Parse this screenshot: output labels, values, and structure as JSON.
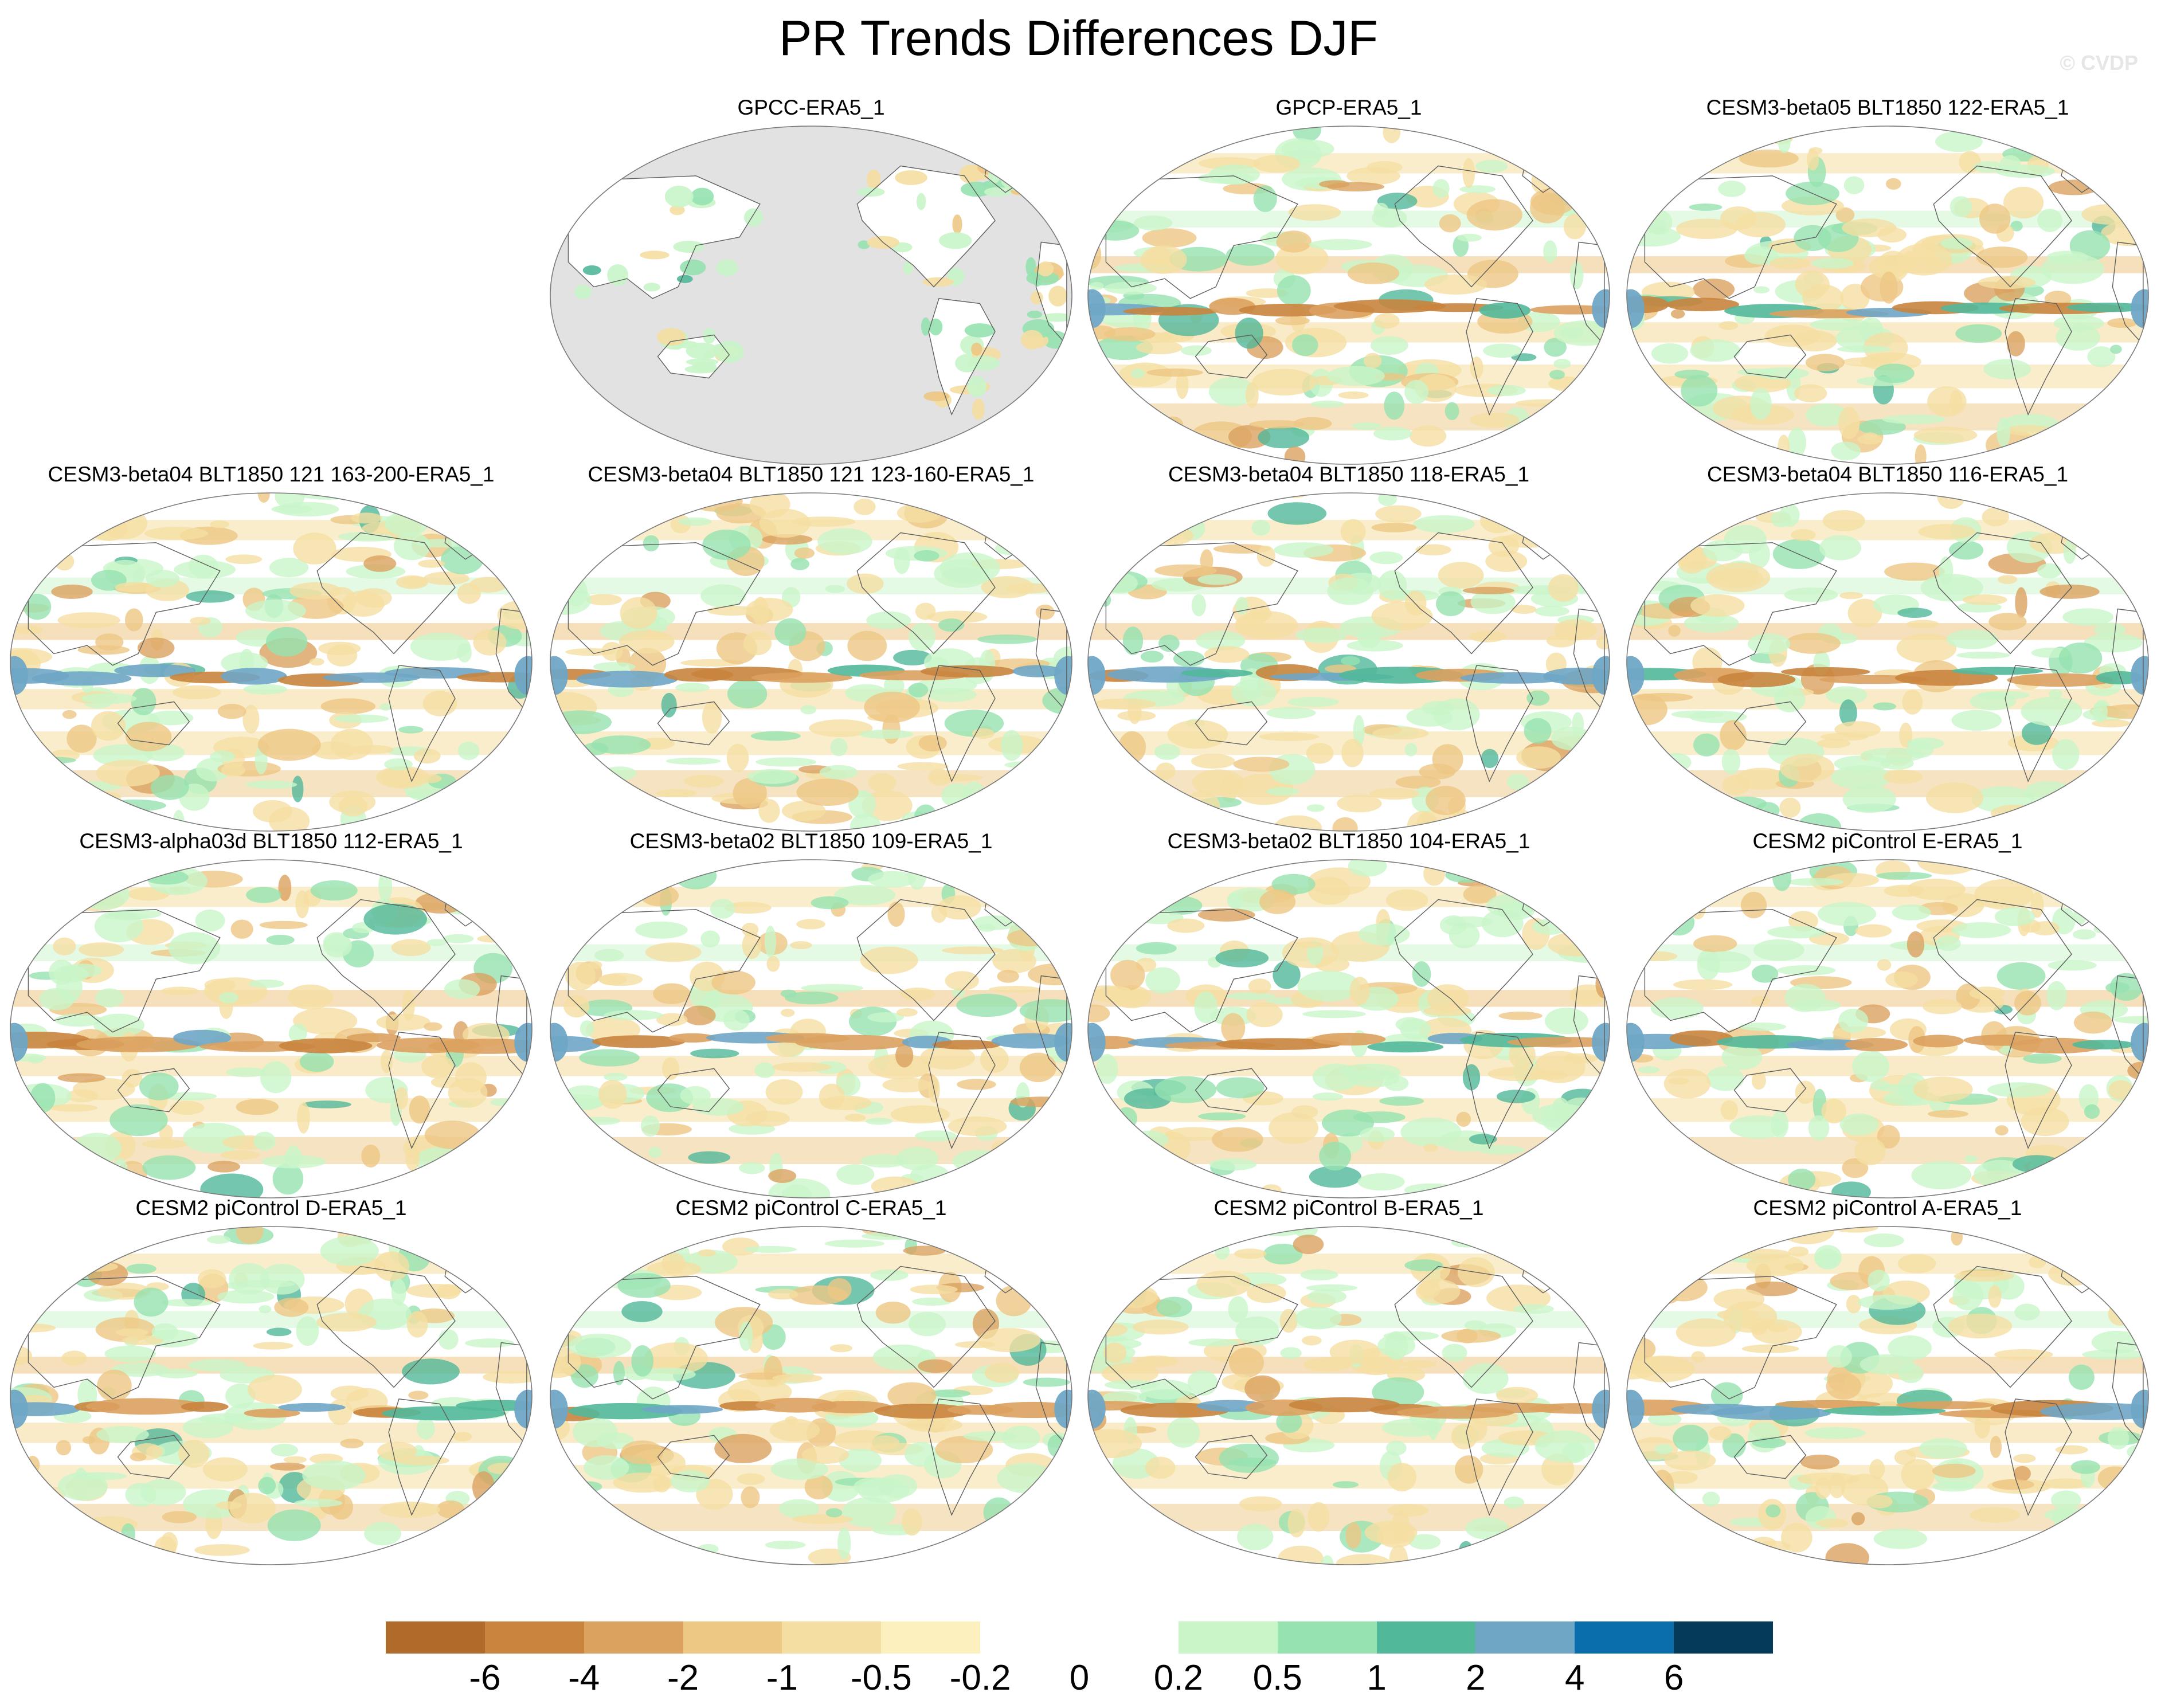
{
  "title": "PR Trends Differences DJF",
  "watermark": "© CVDP",
  "panels": [
    {
      "title": "GPCC-ERA5_1",
      "land_only": true
    },
    {
      "title": "GPCP-ERA5_1"
    },
    {
      "title": "CESM3-beta05 BLT1850 122-ERA5_1"
    },
    {
      "title": "CESM3-beta04 BLT1850 121 163-200-ERA5_1"
    },
    {
      "title": "CESM3-beta04 BLT1850 121 123-160-ERA5_1"
    },
    {
      "title": "CESM3-beta04 BLT1850 118-ERA5_1"
    },
    {
      "title": "CESM3-beta04 BLT1850 116-ERA5_1"
    },
    {
      "title": "CESM3-alpha03d BLT1850 112-ERA5_1"
    },
    {
      "title": "CESM3-beta02 BLT1850 109-ERA5_1"
    },
    {
      "title": "CESM3-beta02 BLT1850 104-ERA5_1"
    },
    {
      "title": "CESM2 piControl E-ERA5_1"
    },
    {
      "title": "CESM2 piControl D-ERA5_1"
    },
    {
      "title": "CESM2 piControl C-ERA5_1"
    },
    {
      "title": "CESM2 piControl B-ERA5_1"
    },
    {
      "title": "CESM2 piControl A-ERA5_1"
    }
  ],
  "colorbar": {
    "labels": [
      "-6",
      "-4",
      "-2",
      "-1",
      "-0.5",
      "-0.2",
      "0",
      "0.2",
      "0.5",
      "1",
      "2",
      "4",
      "6"
    ],
    "colors": [
      "#b06a2a",
      "#c9843e",
      "#dba15f",
      "#edc784",
      "#f5dea2",
      "#fbf0be",
      "#ffffff",
      "#ffffff",
      "#c9f5c9",
      "#96e2b0",
      "#52b89a",
      "#6fa6c6",
      "#0a6eac",
      "#053a5a"
    ]
  },
  "colors": {
    "land_mask": "#e2e2e2",
    "map_outline": "#7a7a7a"
  }
}
